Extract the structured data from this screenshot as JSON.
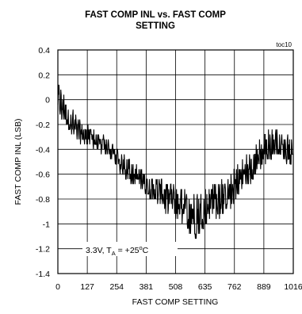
{
  "chart_data": {
    "type": "line",
    "title_line1": "FAST COMP INL vs. FAST COMP",
    "title_line2": "SETTING",
    "xlabel": "FAST COMP SETTING",
    "ylabel": "FAST COMP INL (LSB)",
    "tag": "toc10",
    "annotation": {
      "prefix": "3.3V, T",
      "subscript": "A",
      "suffix": " = +25",
      "superscript": "o",
      "tail": "C"
    },
    "xlim": [
      0,
      1016
    ],
    "ylim": [
      -1.4,
      0.4
    ],
    "xticks": [
      0,
      127,
      254,
      381,
      508,
      635,
      762,
      889,
      1016
    ],
    "xtick_labels": [
      "0",
      "127",
      "254",
      "381",
      "508",
      "635",
      "762",
      "889",
      "1016"
    ],
    "yticks": [
      0.4,
      0.2,
      0,
      -0.2,
      -0.4,
      -0.6,
      -0.8,
      -1,
      -1.2,
      -1.4
    ],
    "ytick_labels": [
      "0.4",
      "0.2",
      "0",
      "-0.2",
      "-0.4",
      "-0.6",
      "-0.8",
      "-1",
      "-1.2",
      "-1.4"
    ],
    "grid": true,
    "series": [
      {
        "color": "#000000",
        "x": [
          0,
          25,
          50,
          75,
          100,
          125,
          150,
          175,
          200,
          225,
          250,
          275,
          300,
          325,
          350,
          375,
          400,
          425,
          450,
          475,
          500,
          525,
          550,
          575,
          600,
          625,
          650,
          675,
          700,
          725,
          750,
          775,
          800,
          825,
          850,
          875,
          900,
          925,
          950,
          975,
          1000,
          1016
        ],
        "y_center": [
          0.0,
          -0.08,
          -0.17,
          -0.22,
          -0.27,
          -0.3,
          -0.32,
          -0.36,
          -0.38,
          -0.41,
          -0.45,
          -0.5,
          -0.56,
          -0.6,
          -0.64,
          -0.68,
          -0.71,
          -0.74,
          -0.77,
          -0.8,
          -0.82,
          -0.84,
          -0.87,
          -0.89,
          -0.9,
          -0.88,
          -0.86,
          -0.84,
          -0.82,
          -0.78,
          -0.72,
          -0.66,
          -0.6,
          -0.56,
          -0.52,
          -0.46,
          -0.4,
          -0.36,
          -0.36,
          -0.4,
          -0.42,
          -0.44
        ],
        "y_min": [
          -0.15,
          -0.18,
          -0.27,
          -0.3,
          -0.36,
          -0.38,
          -0.4,
          -0.42,
          -0.45,
          -0.48,
          -0.54,
          -0.6,
          -0.64,
          -0.68,
          -0.72,
          -0.76,
          -0.8,
          -0.84,
          -0.88,
          -0.95,
          -1.0,
          -0.98,
          -1.05,
          -1.1,
          -1.12,
          -1.05,
          -1.0,
          -0.98,
          -0.95,
          -0.92,
          -0.88,
          -0.8,
          -0.72,
          -0.68,
          -0.64,
          -0.58,
          -0.5,
          -0.46,
          -0.45,
          -0.5,
          -0.52,
          -0.55
        ],
        "y_max": [
          0.17,
          0.07,
          -0.05,
          -0.1,
          -0.15,
          -0.2,
          -0.22,
          -0.26,
          -0.3,
          -0.32,
          -0.36,
          -0.4,
          -0.46,
          -0.5,
          -0.54,
          -0.58,
          -0.6,
          -0.62,
          -0.64,
          -0.66,
          -0.68,
          -0.7,
          -0.72,
          -0.72,
          -0.74,
          -0.72,
          -0.72,
          -0.68,
          -0.66,
          -0.62,
          -0.56,
          -0.52,
          -0.46,
          -0.42,
          -0.38,
          -0.32,
          -0.22,
          -0.2,
          -0.22,
          -0.28,
          -0.3,
          -0.32
        ]
      }
    ]
  }
}
